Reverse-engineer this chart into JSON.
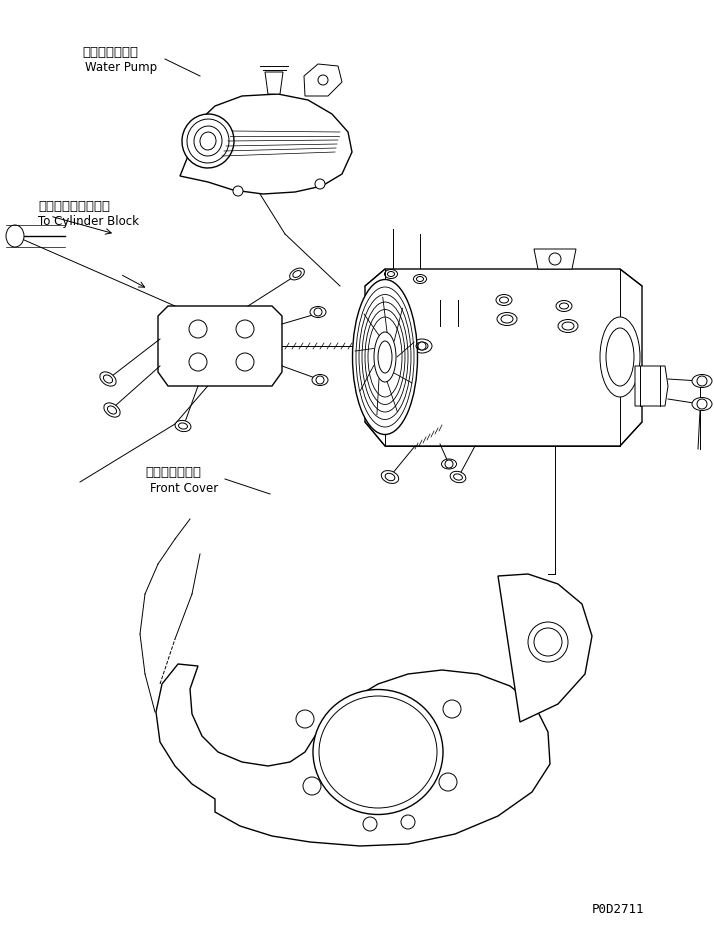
{
  "bg_color": "#ffffff",
  "line_color": "#000000",
  "fig_width": 7.14,
  "fig_height": 9.34,
  "dpi": 100,
  "label_water_pump_jp": "ウォータポンプ",
  "label_water_pump_en": "Water Pump",
  "label_cylinder_jp": "シリンダブロックヘ",
  "label_cylinder_en": "To Cylinder Block",
  "label_front_cover_jp": "フロントカバー",
  "label_front_cover_en": "Front Cover",
  "label_code": "P0D2711",
  "font_size_label": 8.5,
  "font_size_code": 9
}
